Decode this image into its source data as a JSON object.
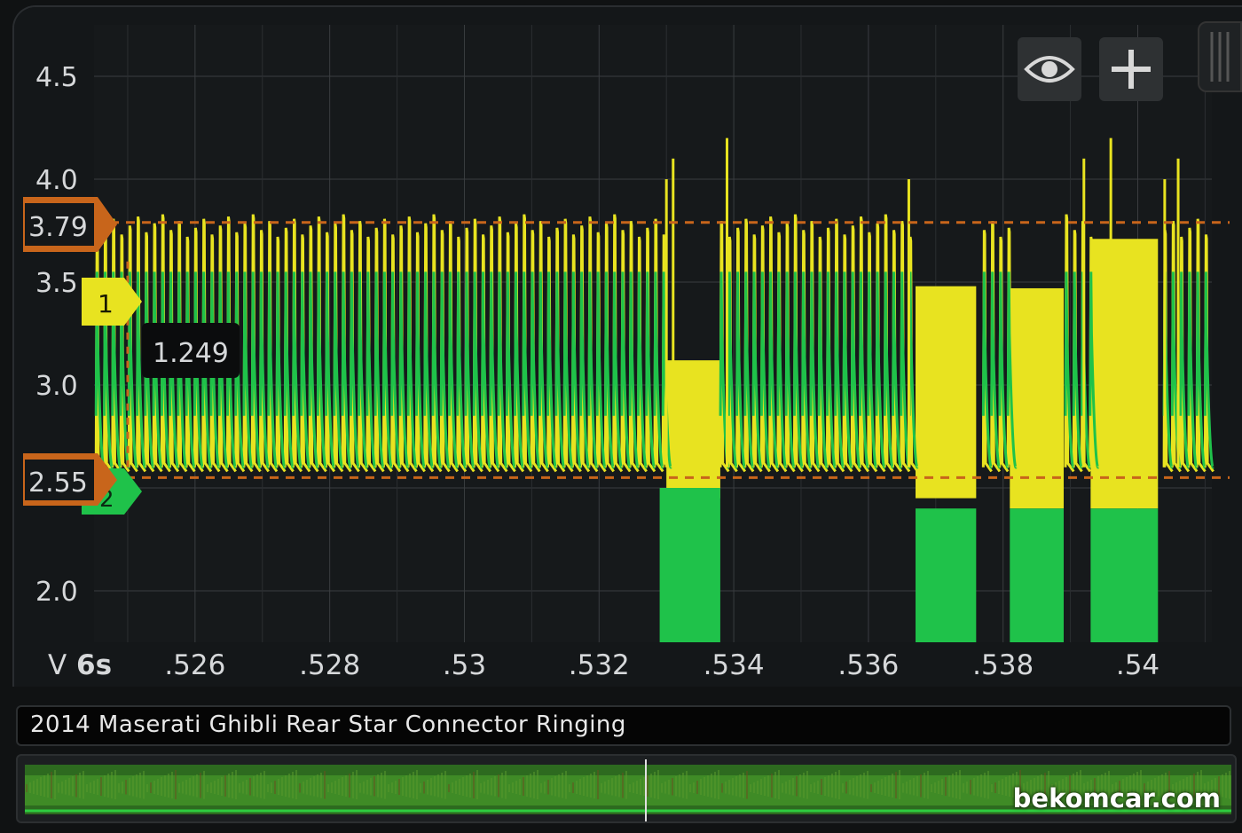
{
  "app": {
    "trace_title": "2014 Maserati Ghibli Rear Star Connector Ringing",
    "watermark": "bekomcar.com"
  },
  "toolbar": {
    "eye_icon": "eye-icon",
    "plus_icon": "plus-icon"
  },
  "markers": {
    "upper": {
      "label": "3.79",
      "value": 3.79,
      "color": "#c8651b"
    },
    "lower": {
      "label": "2.55",
      "value": 2.55,
      "color": "#c8651b"
    },
    "channel1": {
      "label": "1",
      "value": 3.36,
      "color": "#e8e320"
    },
    "channel2": {
      "label": "2",
      "value": 2.5,
      "color": "#1fc24a"
    },
    "cursor_readout": "1.249"
  },
  "axis": {
    "y_unit": "V",
    "x_prefix": "6s"
  },
  "chart_data": {
    "type": "line",
    "xlabel": "6s",
    "ylabel": "V",
    "xlim": [
      0.5245,
      0.5411
    ],
    "ylim": [
      1.75,
      4.75
    ],
    "y_ticks": [
      4.5,
      4.0,
      3.5,
      3.0,
      2.5,
      2.0
    ],
    "y_tick_labels": [
      "4.5",
      "4.0",
      "3.5",
      "3.0",
      "2.5",
      "2.0"
    ],
    "x_ticks": [
      0.526,
      0.528,
      0.53,
      0.532,
      0.534,
      0.536,
      0.538,
      0.54
    ],
    "x_tick_labels": [
      ".526",
      ".528",
      ".53",
      ".532",
      ".534",
      ".536",
      ".538",
      ".54"
    ],
    "grid": true,
    "series": [
      {
        "color": "#e8e320",
        "pulse_high": 3.8,
        "pulse_low": 2.55,
        "bursts": [
          {
            "x": [
              0.533,
              0.5338
            ],
            "low": 2.45,
            "high": 3.12
          },
          {
            "x": [
              0.5367,
              0.5376
            ],
            "low": 2.45,
            "high": 3.48
          },
          {
            "x": [
              0.5381,
              0.5389
            ],
            "low": 2.4,
            "high": 3.47
          },
          {
            "x": [
              0.5393,
              0.5403
            ],
            "low": 2.4,
            "high": 3.71
          }
        ]
      },
      {
        "color": "#1fc24a",
        "pulse_high": 3.55,
        "pulse_low": 2.58,
        "bursts": [
          {
            "x": [
              0.5329,
              0.5338
            ],
            "low": 1.75,
            "high": 2.5
          },
          {
            "x": [
              0.5367,
              0.5376
            ],
            "low": 1.75,
            "high": 2.4
          },
          {
            "x": [
              0.5381,
              0.5389
            ],
            "low": 1.75,
            "high": 2.4
          },
          {
            "x": [
              0.5393,
              0.5403
            ],
            "low": 1.75,
            "high": 2.4
          }
        ]
      }
    ],
    "cursors": [
      {
        "type": "horizontal",
        "value": 3.79
      },
      {
        "type": "horizontal",
        "value": 2.55
      },
      {
        "type": "vertical",
        "x": 0.525
      }
    ]
  }
}
